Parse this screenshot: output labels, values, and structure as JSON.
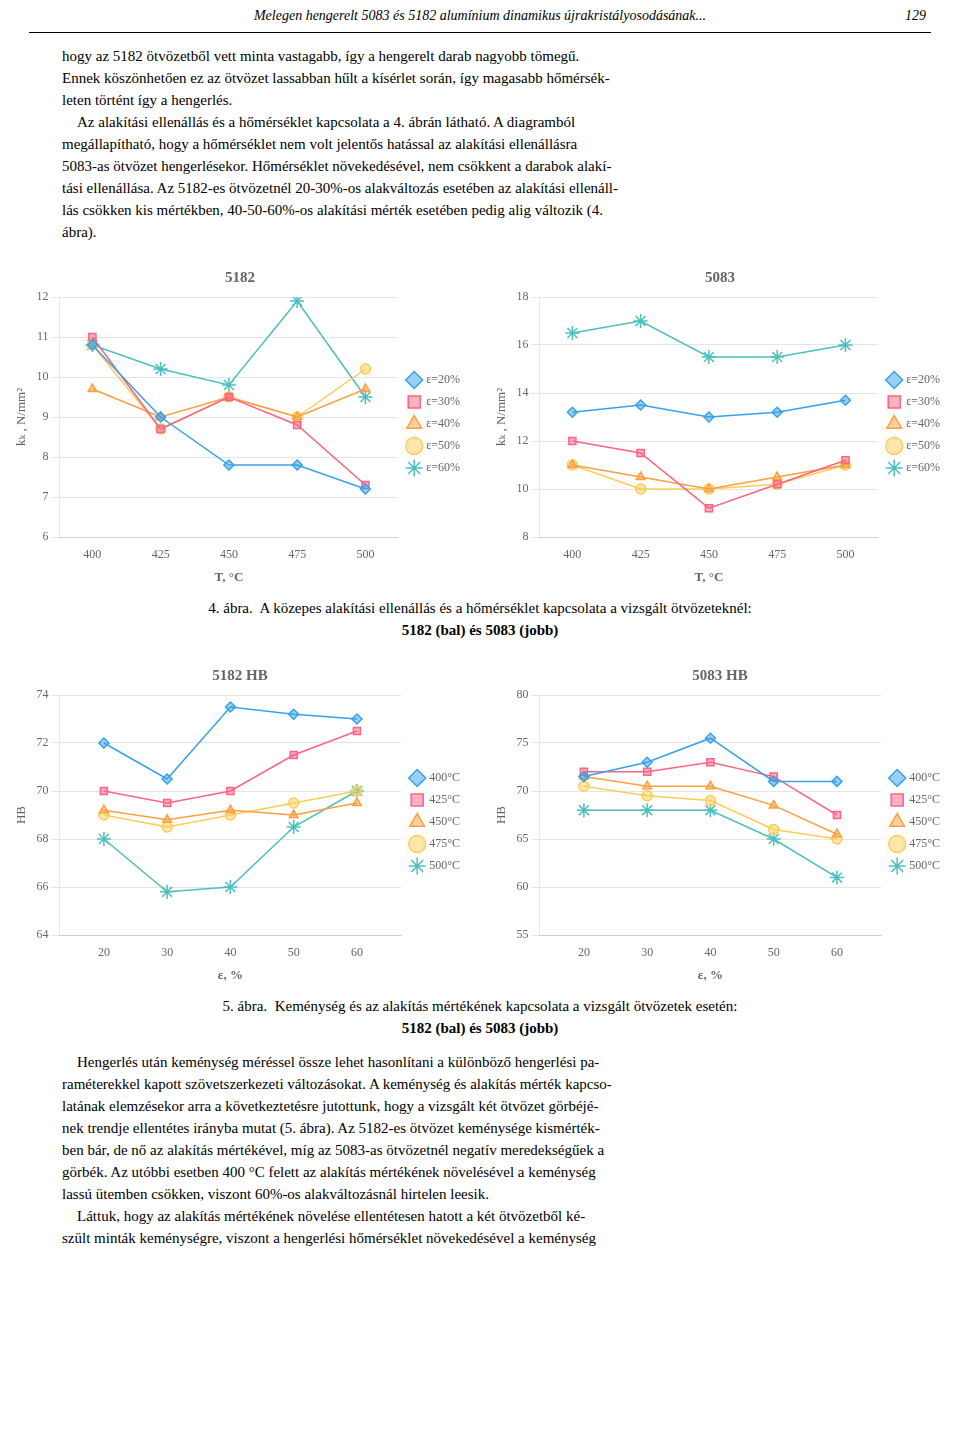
{
  "page_header": "Melegen hengerelt 5083 és 5182 alumínium dinamikus újrakristályosodásának...",
  "page_number": "129",
  "paragraphs_before": [
    "hogy az 5182 ötvözetből vett minta vastagabb, így a hengerelt darab nagyobb tömegű.",
    "Ennek köszönhetően ez az ötvözet lassabban hűlt a kísérlet során, így magasabb hőmérsék-",
    "leten történt így a hengerlés.",
    "    Az alakítási ellenállás és a hőmérséklet kapcsolata a 4. ábrán látható. A diagramból",
    "megállapítható, hogy a hőmérséklet nem volt jelentős hatással az alakítási ellenállásra",
    "5083-as ötvözet hengerlésekor. Hőmérséklet növekedésével, nem csökkent a darabok alakí-",
    "tási ellenállása. Az 5182-es ötvözetnél 20-30%-os alakváltozás esetében az alakítási ellenáll-",
    "lás csökken kis mértékben, 40-50-60%-os alakítási mérték esetében pedig alig változik (4.",
    "ábra)."
  ],
  "chart_data": [
    {
      "type": "line",
      "title": "5182",
      "xlabel": "T, °C",
      "ylabel": "kₖ , N/mm²",
      "x": [
        400,
        425,
        450,
        475,
        500
      ],
      "xlim": [
        388,
        512
      ],
      "xticks": [
        400,
        425,
        450,
        475,
        500
      ],
      "ylim": [
        6,
        12
      ],
      "yticks": [
        6,
        7,
        8,
        9,
        10,
        11,
        12
      ],
      "grid": "y",
      "legend": "right",
      "series": [
        {
          "name": "ε=20%",
          "marker": "diamond",
          "values": [
            10.8,
            9.0,
            7.8,
            7.8,
            7.2
          ]
        },
        {
          "name": "ε=30%",
          "marker": "square",
          "values": [
            11.0,
            8.7,
            9.5,
            8.8,
            7.3
          ]
        },
        {
          "name": "ε=40%",
          "marker": "triangle",
          "values": [
            9.7,
            9.0,
            9.5,
            9.0,
            9.7
          ]
        },
        {
          "name": "ε=50%",
          "marker": "circle",
          "values": [
            10.8,
            8.7,
            9.5,
            9.0,
            10.2
          ]
        },
        {
          "name": "ε=60%",
          "marker": "star",
          "values": [
            10.8,
            10.2,
            9.8,
            11.9,
            9.5
          ]
        }
      ]
    },
    {
      "type": "line",
      "title": "5083",
      "xlabel": "T, °C",
      "ylabel": "kₖ , N/mm²",
      "x": [
        400,
        425,
        450,
        475,
        500
      ],
      "xlim": [
        388,
        512
      ],
      "xticks": [
        400,
        425,
        450,
        475,
        500
      ],
      "ylim": [
        8,
        18
      ],
      "yticks": [
        8,
        10,
        12,
        14,
        16,
        18
      ],
      "grid": "y",
      "legend": "right",
      "series": [
        {
          "name": "ε=20%",
          "marker": "diamond",
          "values": [
            13.2,
            13.5,
            13.0,
            13.2,
            13.7
          ]
        },
        {
          "name": "ε=30%",
          "marker": "square",
          "values": [
            12.0,
            11.5,
            9.2,
            10.2,
            11.2
          ]
        },
        {
          "name": "ε=40%",
          "marker": "triangle",
          "values": [
            11.0,
            10.5,
            10.0,
            10.5,
            11.0
          ]
        },
        {
          "name": "ε=50%",
          "marker": "circle",
          "values": [
            11.0,
            10.0,
            10.0,
            10.2,
            11.0
          ]
        },
        {
          "name": "ε=60%",
          "marker": "star",
          "values": [
            16.5,
            17.0,
            15.5,
            15.5,
            16.0
          ]
        }
      ]
    },
    {
      "type": "line",
      "title": "5182 HB",
      "xlabel": "ε, %",
      "ylabel": "HB",
      "x": [
        20,
        30,
        40,
        50,
        60
      ],
      "xlim": [
        13,
        67
      ],
      "xticks": [
        20,
        30,
        40,
        50,
        60
      ],
      "ylim": [
        64,
        74
      ],
      "yticks": [
        64,
        66,
        68,
        70,
        72,
        74
      ],
      "grid": "y",
      "legend": "right",
      "series": [
        {
          "name": "400°C",
          "marker": "diamond",
          "values": [
            72.0,
            70.5,
            73.5,
            73.2,
            73.0
          ]
        },
        {
          "name": "425°C",
          "marker": "square",
          "values": [
            70.0,
            69.5,
            70.0,
            71.5,
            72.5
          ]
        },
        {
          "name": "450°C",
          "marker": "triangle",
          "values": [
            69.2,
            68.8,
            69.2,
            69.0,
            69.5
          ]
        },
        {
          "name": "475°C",
          "marker": "circle",
          "values": [
            69.0,
            68.5,
            69.0,
            69.5,
            70.0
          ]
        },
        {
          "name": "500°C",
          "marker": "star",
          "values": [
            68.0,
            65.8,
            66.0,
            68.5,
            70.0
          ]
        }
      ]
    },
    {
      "type": "line",
      "title": "5083 HB",
      "xlabel": "ε, %",
      "ylabel": "HB",
      "x": [
        20,
        30,
        40,
        50,
        60
      ],
      "xlim": [
        13,
        67
      ],
      "xticks": [
        20,
        30,
        40,
        50,
        60
      ],
      "ylim": [
        55,
        80
      ],
      "yticks": [
        55,
        60,
        65,
        70,
        75,
        80
      ],
      "grid": "y",
      "legend": "right",
      "series": [
        {
          "name": "400°C",
          "marker": "diamond",
          "values": [
            71.5,
            73.0,
            75.5,
            71.0,
            71.0
          ]
        },
        {
          "name": "425°C",
          "marker": "square",
          "values": [
            72.0,
            72.0,
            73.0,
            71.5,
            67.5
          ]
        },
        {
          "name": "450°C",
          "marker": "triangle",
          "values": [
            71.5,
            70.5,
            70.5,
            68.5,
            65.5
          ]
        },
        {
          "name": "475°C",
          "marker": "circle",
          "values": [
            70.5,
            69.5,
            69.0,
            66.0,
            65.0
          ]
        },
        {
          "name": "500°C",
          "marker": "star",
          "values": [
            68.0,
            68.0,
            68.0,
            65.0,
            61.0
          ]
        }
      ]
    }
  ],
  "captions": [
    [
      "4. ábra.  A közepes alakítási ellenállás és a hőmérséklet kapcsolata a vizsgált ötvözeteknél:",
      "5182 (bal) és 5083 (jobb)"
    ],
    [
      "5. ábra.  Keménység és az alakítás mértékének kapcsolata a vizsgált ötvözetek esetén:",
      "5182 (bal) és 5083 (jobb)"
    ]
  ],
  "paragraphs_after": [
    "    Hengerlés után keménység méréssel össze lehet hasonlítani a különböző hengerlési pa-",
    "raméterekkel kapott szövetszerkezeti változásokat. A keménység és alakítás mérték kapcso-",
    "latának elemzésekor arra a következtetésre jutottunk, hogy a vizsgált két ötvözet görbéjé-",
    "nek trendje ellentétes irányba mutat (5. ábra). Az 5182-es ötvözet keménysége kismérték-",
    "ben bár, de nő az alakítás mértékével, míg az 5083-as ötvözetnél negatív meredekségűek a",
    "görbék. Az utóbbi esetben 400 °C felett az alakítás mértékének növelésével a keménység",
    "lassú ütemben csökken, viszont 60%-os alakváltozásnál hirtelen leesik.",
    "    Láttuk, hogy az alakítás mértékének növelése ellentétesen hatott a két ötvözetből ké-",
    "szült minták keménységre, viszont a hengerlési hőmérséklet növekedésével a keménység"
  ]
}
